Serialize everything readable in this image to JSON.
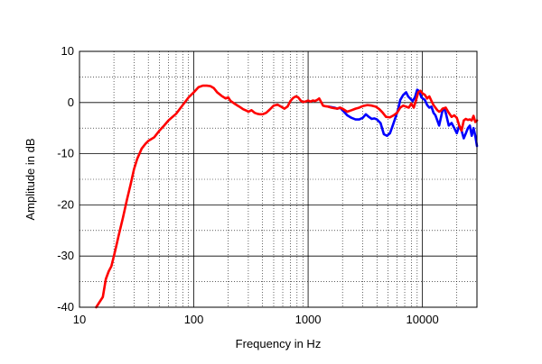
{
  "chart_data": {
    "type": "line",
    "title": "",
    "xlabel": "Frequency in Hz",
    "ylabel": "Amplitude in dB",
    "xscale": "log",
    "xlim": [
      10,
      30000
    ],
    "ylim": [
      -40,
      10
    ],
    "x_ticks": [
      10,
      100,
      1000,
      10000
    ],
    "x_tick_labels": [
      "10",
      "100",
      "1000",
      "10000"
    ],
    "y_ticks": [
      10,
      0,
      -10,
      -20,
      -30,
      -40
    ],
    "y_tick_labels": [
      "10",
      "0",
      "-10",
      "-20",
      "-30",
      "-40"
    ],
    "grid": "major solid, minor dotted",
    "legend": "none",
    "series": [
      {
        "color": "#0000ff",
        "points": [
          [
            1500,
            -0.8
          ],
          [
            1700,
            -1.0
          ],
          [
            1800,
            -1.2
          ],
          [
            1900,
            -1.0
          ],
          [
            2000,
            -1.5
          ],
          [
            2200,
            -2.5
          ],
          [
            2400,
            -3.0
          ],
          [
            2600,
            -3.3
          ],
          [
            2800,
            -3.3
          ],
          [
            3000,
            -3.0
          ],
          [
            3200,
            -2.3
          ],
          [
            3400,
            -2.8
          ],
          [
            3600,
            -3.2
          ],
          [
            3800,
            -3.1
          ],
          [
            4000,
            -3.3
          ],
          [
            4300,
            -4.0
          ],
          [
            4600,
            -6.2
          ],
          [
            4900,
            -6.5
          ],
          [
            5200,
            -6.0
          ],
          [
            5500,
            -4.5
          ],
          [
            5800,
            -3.0
          ],
          [
            6100,
            -1.5
          ],
          [
            6400,
            0.5
          ],
          [
            6800,
            1.5
          ],
          [
            7200,
            2.0
          ],
          [
            7500,
            1.2
          ],
          [
            7800,
            0.8
          ],
          [
            8200,
            0.3
          ],
          [
            8600,
            1.0
          ],
          [
            9000,
            2.5
          ],
          [
            9400,
            2.2
          ],
          [
            9800,
            1.0
          ],
          [
            10500,
            0.5
          ],
          [
            11000,
            -0.5
          ],
          [
            11500,
            -1.0
          ],
          [
            12000,
            -0.8
          ],
          [
            12500,
            -2.0
          ],
          [
            13000,
            -2.5
          ],
          [
            13500,
            -3.5
          ],
          [
            14000,
            -4.5
          ],
          [
            14500,
            -3.0
          ],
          [
            15000,
            -1.5
          ],
          [
            15500,
            -1.2
          ],
          [
            16000,
            -2.0
          ],
          [
            17000,
            -4.5
          ],
          [
            18000,
            -4.0
          ],
          [
            19000,
            -5.0
          ],
          [
            20000,
            -6.0
          ],
          [
            21000,
            -4.5
          ],
          [
            22000,
            -5.5
          ],
          [
            23000,
            -7.0
          ],
          [
            24000,
            -6.0
          ],
          [
            25000,
            -5.0
          ],
          [
            26000,
            -4.5
          ],
          [
            27000,
            -6.5
          ],
          [
            28000,
            -5.0
          ],
          [
            29000,
            -6.5
          ],
          [
            30000,
            -8.5
          ]
        ]
      },
      {
        "color": "#ff0000",
        "points": [
          [
            14,
            -40
          ],
          [
            16,
            -38
          ],
          [
            17,
            -34.5
          ],
          [
            18,
            -33
          ],
          [
            19,
            -32
          ],
          [
            20,
            -30
          ],
          [
            21,
            -28
          ],
          [
            22,
            -26
          ],
          [
            24,
            -22.5
          ],
          [
            26,
            -19
          ],
          [
            28,
            -16
          ],
          [
            30,
            -13
          ],
          [
            32,
            -11
          ],
          [
            35,
            -9
          ],
          [
            38,
            -8
          ],
          [
            40,
            -7.5
          ],
          [
            45,
            -6.8
          ],
          [
            50,
            -5.5
          ],
          [
            55,
            -4.5
          ],
          [
            60,
            -3.5
          ],
          [
            70,
            -2.2
          ],
          [
            80,
            -0.5
          ],
          [
            90,
            1.0
          ],
          [
            100,
            2.0
          ],
          [
            110,
            3.0
          ],
          [
            120,
            3.3
          ],
          [
            130,
            3.3
          ],
          [
            140,
            3.2
          ],
          [
            150,
            2.8
          ],
          [
            160,
            2.0
          ],
          [
            175,
            1.3
          ],
          [
            190,
            0.8
          ],
          [
            200,
            1.0
          ],
          [
            210,
            0.3
          ],
          [
            230,
            -0.3
          ],
          [
            250,
            -0.8
          ],
          [
            270,
            -1.3
          ],
          [
            290,
            -1.6
          ],
          [
            300,
            -1.8
          ],
          [
            320,
            -1.5
          ],
          [
            340,
            -2.0
          ],
          [
            360,
            -2.2
          ],
          [
            380,
            -2.3
          ],
          [
            400,
            -2.3
          ],
          [
            430,
            -2.0
          ],
          [
            460,
            -1.4
          ],
          [
            500,
            -0.6
          ],
          [
            540,
            -0.4
          ],
          [
            580,
            -0.8
          ],
          [
            620,
            -1.2
          ],
          [
            660,
            -0.8
          ],
          [
            700,
            0.3
          ],
          [
            740,
            0.9
          ],
          [
            780,
            1.2
          ],
          [
            820,
            1.0
          ],
          [
            860,
            0.4
          ],
          [
            900,
            0.1
          ],
          [
            950,
            0.2
          ],
          [
            1000,
            0.4
          ],
          [
            1050,
            0.2
          ],
          [
            1100,
            0.4
          ],
          [
            1150,
            0.3
          ],
          [
            1200,
            0.5
          ],
          [
            1250,
            0.8
          ],
          [
            1300,
            0.1
          ],
          [
            1350,
            -0.6
          ],
          [
            1400,
            -0.7
          ],
          [
            1500,
            -0.8
          ],
          [
            1600,
            -1.0
          ],
          [
            1700,
            -1.1
          ],
          [
            1800,
            -1.2
          ],
          [
            1900,
            -1.0
          ],
          [
            2000,
            -1.2
          ],
          [
            2200,
            -1.8
          ],
          [
            2400,
            -1.5
          ],
          [
            2600,
            -1.2
          ],
          [
            2800,
            -1.0
          ],
          [
            3000,
            -0.7
          ],
          [
            3300,
            -0.5
          ],
          [
            3600,
            -0.6
          ],
          [
            3900,
            -0.8
          ],
          [
            4200,
            -1.3
          ],
          [
            4500,
            -2.0
          ],
          [
            4800,
            -2.8
          ],
          [
            5200,
            -2.9
          ],
          [
            5600,
            -2.5
          ],
          [
            6000,
            -2.0
          ],
          [
            6400,
            -1.0
          ],
          [
            6800,
            -0.6
          ],
          [
            7200,
            -0.8
          ],
          [
            7600,
            -1.0
          ],
          [
            8000,
            -0.2
          ],
          [
            8400,
            -1.0
          ],
          [
            8800,
            0.5
          ],
          [
            9200,
            2.0
          ],
          [
            9600,
            2.3
          ],
          [
            10000,
            1.8
          ],
          [
            10500,
            1.5
          ],
          [
            11000,
            0.8
          ],
          [
            11500,
            1.2
          ],
          [
            12000,
            0.3
          ],
          [
            12500,
            -0.5
          ],
          [
            13000,
            -1.0
          ],
          [
            13500,
            -1.5
          ],
          [
            14000,
            -1.8
          ],
          [
            14500,
            -1.6
          ],
          [
            15000,
            -1.2
          ],
          [
            16000,
            -1.0
          ],
          [
            17000,
            -2.0
          ],
          [
            18000,
            -2.8
          ],
          [
            19000,
            -2.5
          ],
          [
            20000,
            -3.0
          ],
          [
            21000,
            -4.5
          ],
          [
            22000,
            -5.5
          ],
          [
            23000,
            -3.5
          ],
          [
            24000,
            -3.2
          ],
          [
            25000,
            -3.4
          ],
          [
            26000,
            -3.3
          ],
          [
            27000,
            -3.5
          ],
          [
            28000,
            -2.6
          ],
          [
            29000,
            -3.8
          ],
          [
            30000,
            -3.5
          ]
        ]
      }
    ]
  }
}
